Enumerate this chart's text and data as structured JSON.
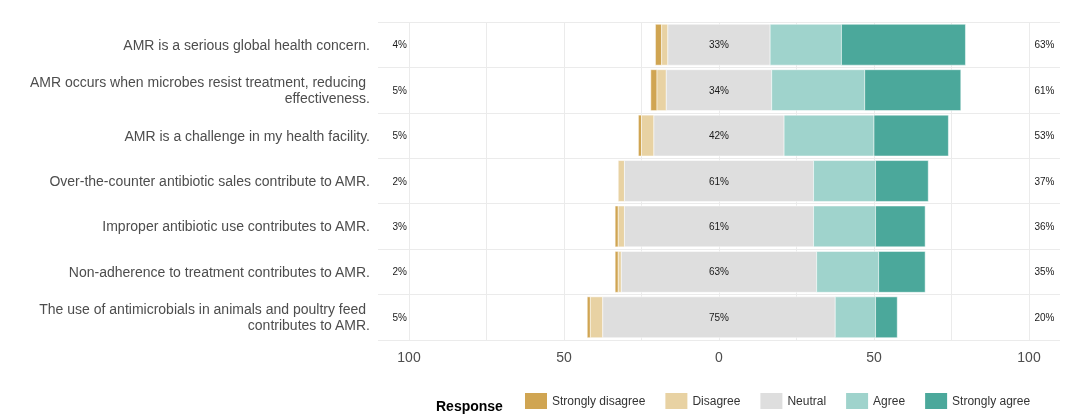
{
  "chart_data": {
    "type": "bar",
    "orientation": "horizontal",
    "categories": [
      "AMR is a serious global health concern.",
      "AMR occurs when microbes resist treatment, reducing effectiveness.",
      "AMR is a challenge in my health facility.",
      "Over-the-counter antibiotic sales contribute to AMR.",
      "Improper antibiotic use contributes to AMR.",
      "Non-adherence to treatment contributes to AMR.",
      "The use of antimicrobials in animals and poultry feed contributes to AMR."
    ],
    "series": [
      {
        "name": "Strongly disagree",
        "color": "#d0a552",
        "values": [
          2,
          2,
          1,
          null,
          1,
          1,
          1
        ],
        "base": [
          -20.5,
          -22,
          -26,
          null,
          -33.5,
          -33.5,
          -42.5
        ]
      },
      {
        "name": "Disagree",
        "color": "#e8d2a3",
        "values": [
          2,
          3,
          4,
          2,
          2,
          1,
          4
        ],
        "base": [
          -18.5,
          -20,
          -25,
          -32.5,
          -32.5,
          -32.5,
          -41.5
        ]
      },
      {
        "name": "Neutral",
        "color": "#dedede",
        "values": [
          33,
          34,
          42,
          61,
          61,
          63,
          75
        ],
        "base": [
          -16.5,
          -17,
          -21,
          -30.5,
          -30.5,
          -31.5,
          -37.5
        ],
        "value_labels": [
          "33%",
          "34%",
          "42%",
          "61%",
          "61%",
          "63%",
          "75%"
        ]
      },
      {
        "name": "Agree",
        "color": "#9fd3cc",
        "values": [
          23,
          30,
          29,
          20,
          20,
          20,
          13
        ],
        "base": [
          16.5,
          17,
          21,
          30.5,
          30.5,
          31.5,
          37.5
        ]
      },
      {
        "name": "Strongly agree",
        "color": "#4ba89b",
        "values": [
          40,
          31,
          24,
          17,
          16,
          15,
          7
        ],
        "base": [
          39.5,
          47,
          50,
          50.5,
          50.5,
          51.5,
          50.5
        ]
      }
    ],
    "annotations": [
      "4%",
      "5%",
      "5%",
      "2%",
      "3%",
      "2%",
      "5%",
      "63%",
      "61%",
      "53%",
      "37%",
      "36%",
      "35%",
      "20%"
    ],
    "xlim": [
      -110,
      110
    ],
    "xticks": [
      {
        "value": -100,
        "label": "100"
      },
      {
        "value": -75,
        "label": null
      },
      {
        "value": -50,
        "label": "50"
      },
      {
        "value": -25,
        "label": null
      },
      0,
      {
        "value": 25,
        "label": null
      },
      50,
      {
        "value": 75,
        "label": null
      },
      100
    ],
    "grid": true,
    "legend": "bottom",
    "legend_title": "Response"
  }
}
